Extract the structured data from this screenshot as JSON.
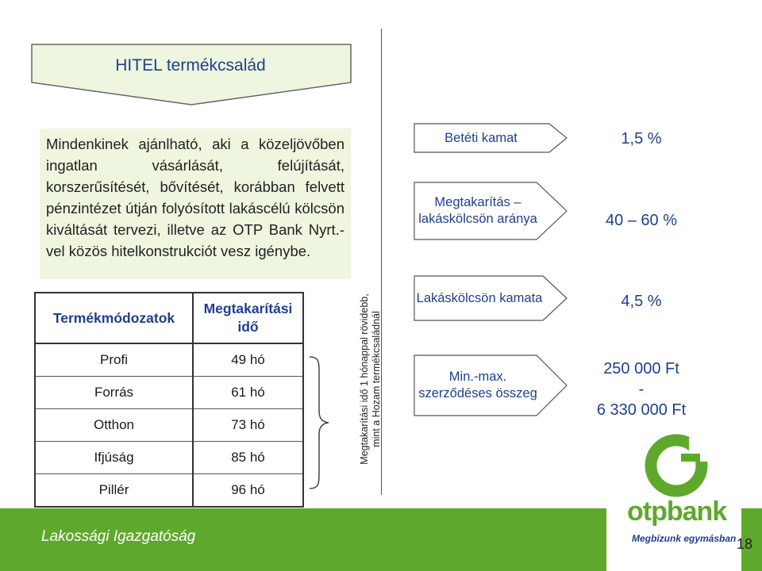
{
  "header": {
    "title": "HITEL termékcsalád"
  },
  "intro": {
    "text": "Mindenkinek ajánlható, aki a közeljövőben ingatlan vásárlását, felújítását, korszerűsítését, bővítését, korábban felvett pénzintézet útján folyósított lakáscélú kölcsön kiváltását tervezi, illetve az OTP Bank Nyrt.-vel közös hitelkonstrukciót vesz igénybe."
  },
  "table": {
    "headers": [
      "Termékmódozatok",
      "Megtakarítási idő"
    ],
    "rows": [
      [
        "Profi",
        "49 hó"
      ],
      [
        "Forrás",
        "61 hó"
      ],
      [
        "Otthon",
        "73 hó"
      ],
      [
        "Ifjúság",
        "85 hó"
      ],
      [
        "Pillér",
        "96 hó"
      ]
    ]
  },
  "rotated_note": "Megtakarítási idő 1 hónappal rövidebb, mint a Hozam termékcsaládnál",
  "features": [
    {
      "label": "Betéti kamat",
      "value": "1,5 %"
    },
    {
      "label": "Megtakarítás – lakáskölcsön aránya",
      "value": "40 – 60 %"
    },
    {
      "label": "Lakáskölcsön kamata",
      "value": "4,5 %"
    },
    {
      "label": "Min.-max. szerződéses összeg",
      "value_lines": [
        "250 000 Ft",
        "-",
        "6 330 000 Ft"
      ]
    }
  ],
  "footer": {
    "text": "Lakossági Igazgatóság",
    "brand": "otpbank",
    "slogan": "Megbízunk egymásban",
    "page_number": "18"
  },
  "colors": {
    "accent_blue": "#1f3f8f",
    "brand_green": "#5ea92c",
    "intro_bg": "#eef6df",
    "title_bg": "#eef6df"
  }
}
